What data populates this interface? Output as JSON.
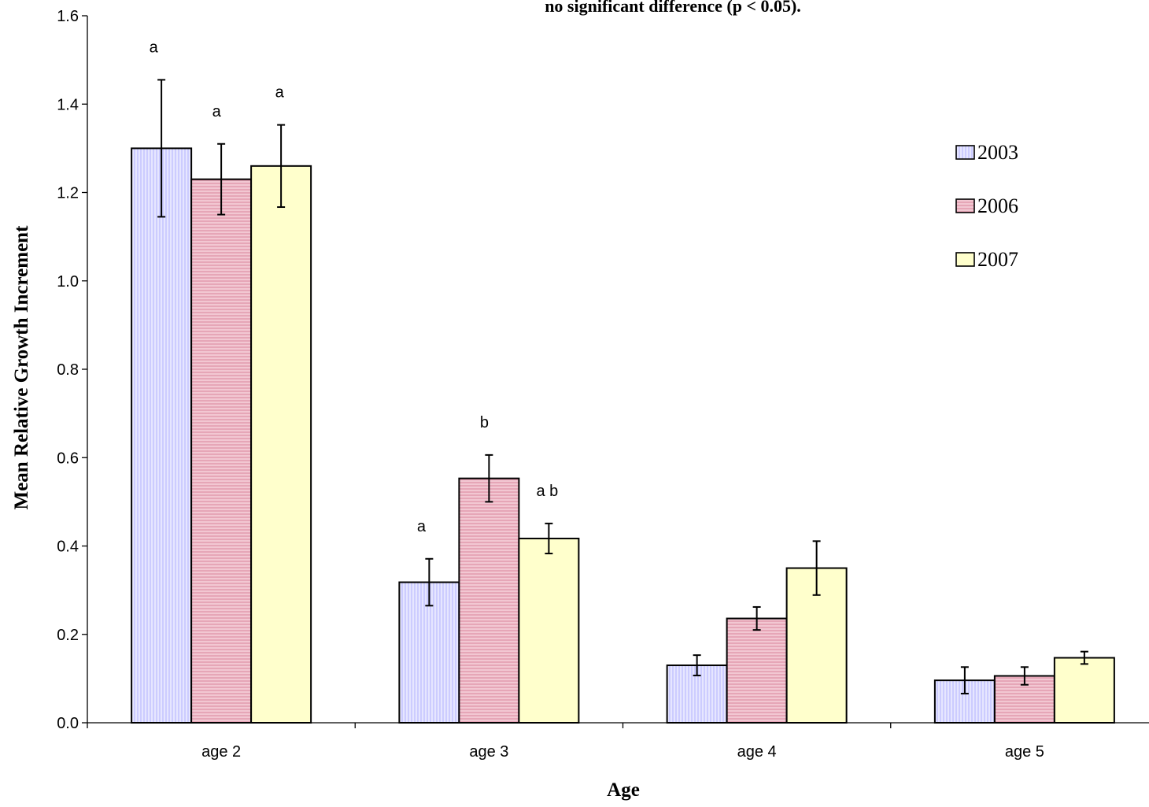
{
  "chart_data": {
    "type": "bar",
    "title": "no significant difference (p < 0.05).",
    "xlabel": "Age",
    "ylabel": "Mean Relative Growth Increment",
    "ylim": [
      0,
      1.6
    ],
    "yticks": [
      "0.0",
      "0.2",
      "0.4",
      "0.6",
      "0.8",
      "1.0",
      "1.2",
      "1.4",
      "1.6"
    ],
    "categories": [
      "age 2",
      "age 3",
      "age 4",
      "age 5"
    ],
    "series": [
      {
        "name": "2003",
        "color": "#ccccff",
        "pattern": "vertical-lines",
        "values": [
          1.3,
          0.318,
          0.13,
          0.096
        ],
        "error_low": [
          1.145,
          0.265,
          0.107,
          0.066
        ],
        "error_high": [
          1.455,
          0.371,
          0.153,
          0.126
        ]
      },
      {
        "name": "2006",
        "color": "#f2c7d2",
        "pattern": "horizontal-lines",
        "values": [
          1.23,
          0.553,
          0.236,
          0.106
        ],
        "error_low": [
          1.15,
          0.5,
          0.21,
          0.086
        ],
        "error_high": [
          1.31,
          0.606,
          0.262,
          0.126
        ]
      },
      {
        "name": "2007",
        "color": "#ffffcc",
        "pattern": "solid",
        "values": [
          1.26,
          0.417,
          0.35,
          0.147
        ],
        "error_low": [
          1.167,
          0.383,
          0.289,
          0.133
        ],
        "error_high": [
          1.353,
          0.451,
          0.411,
          0.161
        ]
      }
    ],
    "annotations": [
      [
        "a",
        "a",
        "a"
      ],
      [
        "a",
        "b",
        "a b"
      ],
      [
        "",
        "",
        ""
      ],
      [
        "",
        "",
        ""
      ]
    ],
    "legend": {
      "placement": "right"
    },
    "grid": false
  }
}
